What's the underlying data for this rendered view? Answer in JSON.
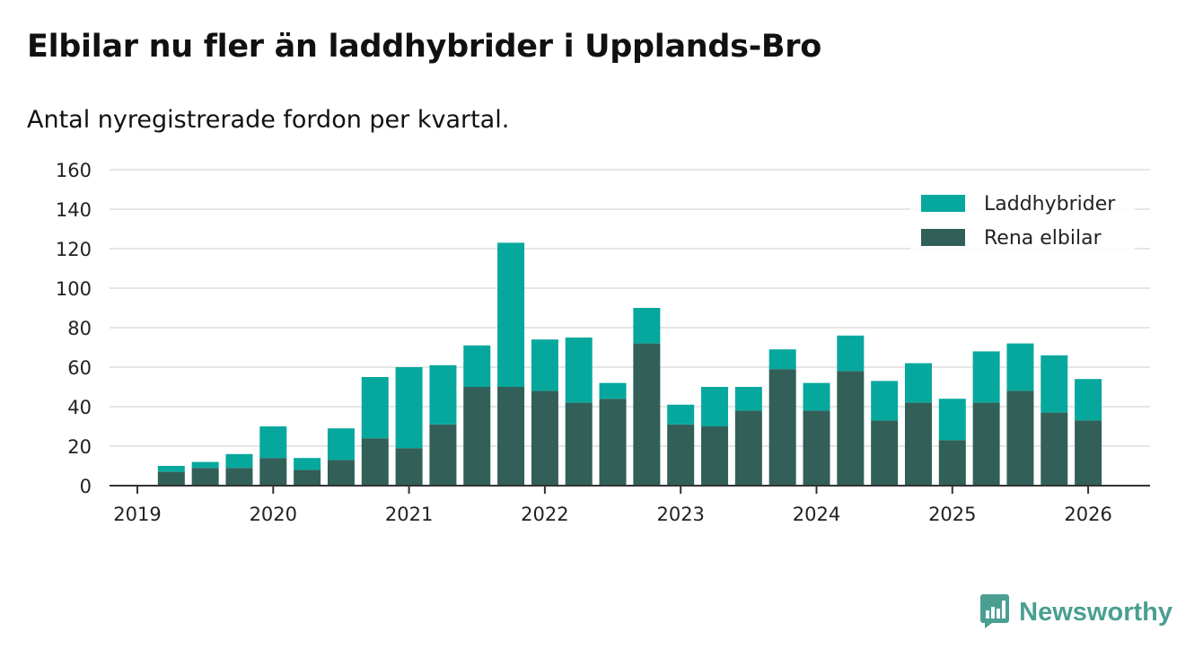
{
  "chart_data": {
    "type": "bar",
    "stacked": true,
    "title": "Elbilar nu fler än laddhybrider i Upplands-Bro",
    "subtitle": "Antal nyregistrerade fordon per kvartal.",
    "xlabel": "",
    "ylabel": "",
    "ylim": [
      0,
      160
    ],
    "y_ticks": [
      0,
      20,
      40,
      60,
      80,
      100,
      120,
      140,
      160
    ],
    "x_ticks": [
      "2019",
      "2020",
      "2021",
      "2022",
      "2023",
      "2024",
      "2025",
      "2026"
    ],
    "grid": true,
    "legend_position": "top-right",
    "categories": [
      "2019 Q2",
      "2019 Q3",
      "2019 Q4",
      "2020 Q1",
      "2020 Q2",
      "2020 Q3",
      "2020 Q4",
      "2021 Q1",
      "2021 Q2",
      "2021 Q3",
      "2021 Q4",
      "2022 Q1",
      "2022 Q2",
      "2022 Q3",
      "2022 Q4",
      "2023 Q1",
      "2023 Q2",
      "2023 Q3",
      "2023 Q4",
      "2024 Q1",
      "2024 Q2",
      "2024 Q3",
      "2024 Q4",
      "2025 Q1",
      "2025 Q2",
      "2025 Q3",
      "2025 Q4",
      "2026 Q1"
    ],
    "series": [
      {
        "name": "Rena elbilar",
        "color": "#325f58",
        "values": [
          7,
          9,
          9,
          14,
          8,
          13,
          24,
          19,
          31,
          50,
          50,
          48,
          42,
          44,
          72,
          31,
          30,
          38,
          59,
          38,
          58,
          33,
          42,
          23,
          42,
          48,
          37,
          33
        ]
      },
      {
        "name": "Laddhybrider",
        "color": "#06a89d",
        "values": [
          3,
          3,
          7,
          16,
          6,
          16,
          31,
          41,
          30,
          21,
          73,
          26,
          33,
          8,
          18,
          10,
          20,
          12,
          10,
          14,
          18,
          20,
          20,
          21,
          26,
          24,
          29,
          21
        ]
      }
    ],
    "legend": [
      "Laddhybrider",
      "Rena elbilar"
    ]
  },
  "brand": {
    "name": "Newsworthy",
    "color": "#4a9f91",
    "icon": "newsworthy-logo-icon"
  }
}
